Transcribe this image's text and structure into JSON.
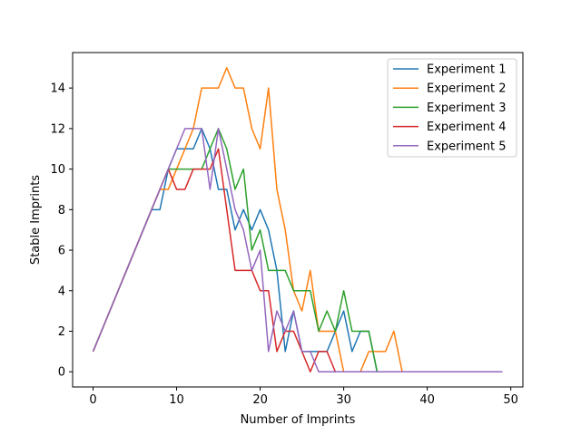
{
  "chart_data": {
    "type": "line",
    "title": "",
    "xlabel": "Number of Imprints",
    "ylabel": "Stable Imprints",
    "xlim": [
      -2.45,
      51.45
    ],
    "ylim": [
      -0.75,
      15.75
    ],
    "xticks": [
      0,
      10,
      20,
      30,
      40,
      50
    ],
    "yticks": [
      0,
      2,
      4,
      6,
      8,
      10,
      12,
      14
    ],
    "grid": false,
    "legend_position": "top-right",
    "x": [
      0,
      1,
      2,
      3,
      4,
      5,
      6,
      7,
      8,
      9,
      10,
      11,
      12,
      13,
      14,
      15,
      16,
      17,
      18,
      19,
      20,
      21,
      22,
      23,
      24,
      25,
      26,
      27,
      28,
      29,
      30,
      31,
      32,
      33,
      34,
      35,
      36,
      37,
      38,
      39,
      40,
      41,
      42,
      43,
      44,
      45,
      46,
      47,
      48,
      49
    ],
    "series": [
      {
        "name": "Experiment 1",
        "color": "#1f77b4",
        "values": [
          1,
          2,
          3,
          4,
          5,
          6,
          7,
          8,
          8,
          10,
          11,
          11,
          11,
          12,
          11,
          9,
          9,
          7,
          8,
          7,
          8,
          7,
          5,
          1,
          3,
          1,
          1,
          1,
          1,
          2,
          3,
          1,
          2,
          2,
          0,
          0,
          0,
          0,
          0,
          0,
          0,
          0,
          0,
          0,
          0,
          0,
          0,
          0,
          0,
          0
        ]
      },
      {
        "name": "Experiment 2",
        "color": "#ff7f0e",
        "values": [
          1,
          2,
          3,
          4,
          5,
          6,
          7,
          8,
          9,
          9,
          10,
          11,
          12,
          14,
          14,
          14,
          15,
          14,
          14,
          12,
          11,
          14,
          9,
          7,
          4,
          3,
          5,
          2,
          2,
          2,
          0,
          0,
          0,
          1,
          1,
          1,
          2,
          0,
          0,
          0,
          0,
          0,
          0,
          0,
          0,
          0,
          0,
          0,
          0,
          0
        ]
      },
      {
        "name": "Experiment 3",
        "color": "#2ca02c",
        "values": [
          1,
          2,
          3,
          4,
          5,
          6,
          7,
          8,
          9,
          10,
          10,
          10,
          10,
          10,
          11,
          12,
          11,
          9,
          10,
          6,
          7,
          5,
          5,
          5,
          4,
          4,
          4,
          2,
          3,
          2,
          4,
          2,
          2,
          2,
          0,
          0,
          0,
          0,
          0,
          0,
          0,
          0,
          0,
          0,
          0,
          0,
          0,
          0,
          0,
          0
        ]
      },
      {
        "name": "Experiment 4",
        "color": "#d62728",
        "values": [
          1,
          2,
          3,
          4,
          5,
          6,
          7,
          8,
          9,
          10,
          9,
          9,
          10,
          10,
          10,
          11,
          8,
          5,
          5,
          5,
          4,
          4,
          1,
          2,
          2,
          1,
          0,
          1,
          1,
          0,
          0,
          0,
          0,
          0,
          0,
          0,
          0,
          0,
          0,
          0,
          0,
          0,
          0,
          0,
          0,
          0,
          0,
          0,
          0,
          0
        ]
      },
      {
        "name": "Experiment 5",
        "color": "#9467bd",
        "values": [
          1,
          2,
          3,
          4,
          5,
          6,
          7,
          8,
          9,
          10,
          11,
          12,
          12,
          12,
          9,
          12,
          10,
          8,
          7,
          5,
          6,
          1,
          3,
          2,
          3,
          1,
          1,
          0,
          0,
          0,
          0,
          0,
          0,
          0,
          0,
          0,
          0,
          0,
          0,
          0,
          0,
          0,
          0,
          0,
          0,
          0,
          0,
          0,
          0,
          0
        ]
      }
    ]
  }
}
